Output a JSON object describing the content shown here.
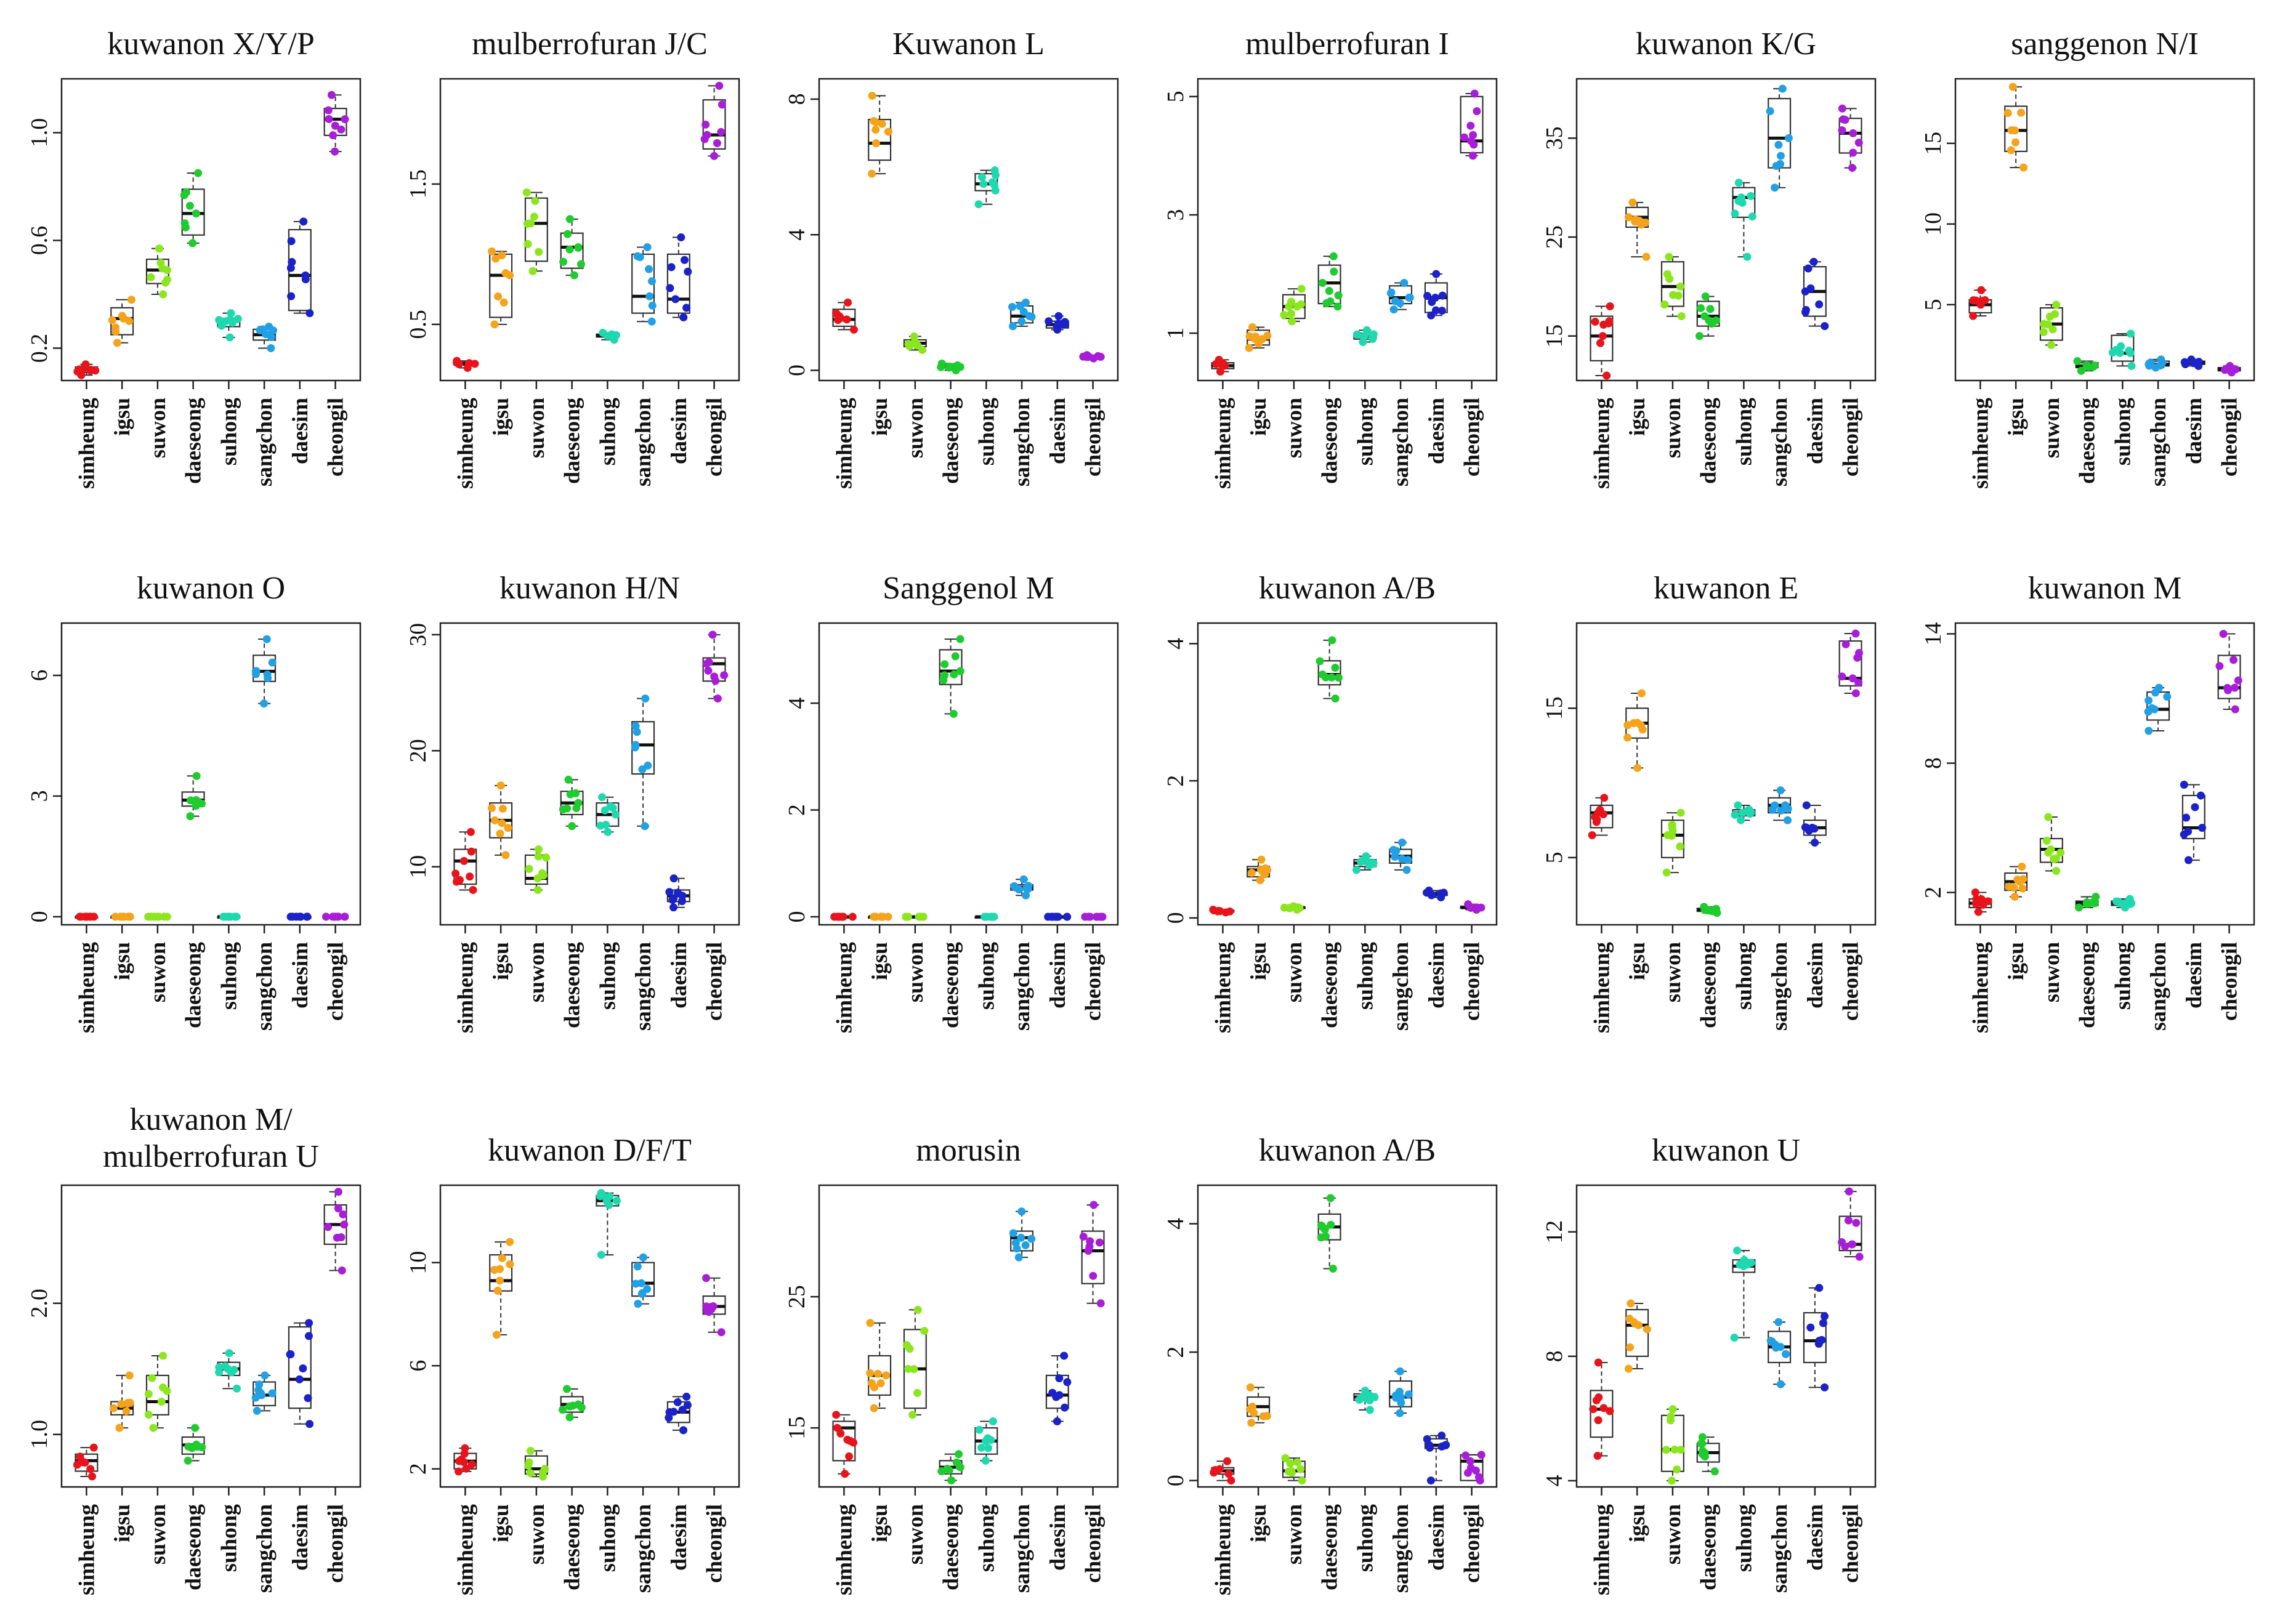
{
  "categories": [
    "simheung",
    "igsu",
    "suwon",
    "daeseong",
    "suhong",
    "sangchon",
    "daesim",
    "cheongil"
  ],
  "group_colors": [
    "#e8141c",
    "#f5a31a",
    "#8ce61e",
    "#1ecc2e",
    "#1ed9b0",
    "#21a0e6",
    "#1a22c8",
    "#a81ed8"
  ],
  "chart_data": [
    {
      "type": "box",
      "title": "kuwanon X/Y/P",
      "ylim": [
        0.08,
        1.2
      ],
      "ticks": [
        0.2,
        0.6,
        1.0
      ],
      "tick_labels": [
        "0.2",
        "0.6",
        "1.0"
      ],
      "medians": [
        0.12,
        0.31,
        0.49,
        0.7,
        0.3,
        0.25,
        0.47,
        1.05
      ],
      "q1": [
        0.11,
        0.25,
        0.44,
        0.62,
        0.28,
        0.23,
        0.34,
        0.99
      ],
      "q3": [
        0.13,
        0.35,
        0.53,
        0.79,
        0.31,
        0.27,
        0.64,
        1.09
      ],
      "mins": [
        0.1,
        0.22,
        0.4,
        0.59,
        0.24,
        0.2,
        0.33,
        0.93
      ],
      "maxs": [
        0.14,
        0.38,
        0.57,
        0.85,
        0.33,
        0.28,
        0.67,
        1.14
      ]
    },
    {
      "type": "box",
      "title": "mulberrofuran J/C",
      "ylim": [
        0.1,
        2.25
      ],
      "ticks": [
        0.5,
        1.5
      ],
      "tick_labels": [
        "0.5",
        "1.5"
      ],
      "medians": [
        0.22,
        0.85,
        1.22,
        1.05,
        0.42,
        0.7,
        0.68,
        1.85
      ],
      "q1": [
        0.21,
        0.55,
        0.95,
        0.9,
        0.41,
        0.58,
        0.58,
        1.75
      ],
      "q3": [
        0.23,
        1.0,
        1.4,
        1.15,
        0.43,
        1.0,
        1.0,
        2.1
      ],
      "mins": [
        0.19,
        0.5,
        0.88,
        0.85,
        0.39,
        0.52,
        0.55,
        1.7
      ],
      "maxs": [
        0.24,
        1.02,
        1.44,
        1.25,
        0.44,
        1.05,
        1.12,
        2.2
      ]
    },
    {
      "type": "box",
      "title": "Kuwanon L",
      "ylim": [
        -0.3,
        8.6
      ],
      "ticks": [
        0,
        4,
        8
      ],
      "tick_labels": [
        "0",
        "4",
        "8"
      ],
      "medians": [
        1.5,
        6.7,
        0.8,
        0.1,
        5.5,
        1.6,
        1.35,
        0.4
      ],
      "q1": [
        1.3,
        6.2,
        0.7,
        0.08,
        5.3,
        1.4,
        1.25,
        0.38
      ],
      "q3": [
        1.8,
        7.4,
        0.9,
        0.15,
        5.8,
        1.9,
        1.45,
        0.42
      ],
      "mins": [
        1.2,
        5.8,
        0.6,
        0.0,
        4.9,
        1.3,
        1.2,
        0.35
      ],
      "maxs": [
        2.0,
        8.1,
        1.0,
        0.2,
        5.9,
        2.0,
        1.6,
        0.45
      ]
    },
    {
      "type": "box",
      "title": "mulberrofuran I",
      "ylim": [
        0.2,
        5.3
      ],
      "ticks": [
        1,
        3,
        5
      ],
      "tick_labels": [
        "1",
        "3",
        "5"
      ],
      "medians": [
        0.45,
        0.9,
        1.45,
        1.85,
        0.95,
        1.6,
        1.6,
        4.25
      ],
      "q1": [
        0.4,
        0.8,
        1.25,
        1.5,
        0.9,
        1.5,
        1.35,
        4.05
      ],
      "q3": [
        0.5,
        1.05,
        1.65,
        2.15,
        1.0,
        1.8,
        1.85,
        5.0
      ],
      "mins": [
        0.35,
        0.75,
        1.2,
        1.45,
        0.85,
        1.4,
        1.3,
        4.0
      ],
      "maxs": [
        0.55,
        1.1,
        1.75,
        2.3,
        1.05,
        1.85,
        2.0,
        5.05
      ]
    },
    {
      "type": "box",
      "title": "kuwanon K/G",
      "ylim": [
        10.5,
        41
      ],
      "ticks": [
        15,
        25,
        35
      ],
      "tick_labels": [
        "15",
        "25",
        "35"
      ],
      "medians": [
        15,
        27,
        20,
        17,
        29,
        35,
        19.5,
        35.5
      ],
      "q1": [
        12.5,
        26,
        18,
        16,
        27,
        32,
        17,
        33.5
      ],
      "q3": [
        17,
        28,
        22.5,
        18.5,
        30,
        39,
        22,
        37
      ],
      "mins": [
        11,
        23,
        17,
        15,
        23,
        30,
        16,
        32
      ],
      "maxs": [
        18,
        28.5,
        23,
        19,
        30.5,
        40,
        22.5,
        38
      ]
    },
    {
      "type": "box",
      "title": "sanggenon N/I",
      "ylim": [
        0.3,
        19
      ],
      "ticks": [
        5,
        10,
        15
      ],
      "tick_labels": [
        "5",
        "10",
        "15"
      ],
      "medians": [
        5,
        15.8,
        3.8,
        1.2,
        2.0,
        1.3,
        1.4,
        1.0
      ],
      "q1": [
        4.5,
        14.5,
        2.8,
        1.1,
        1.5,
        1.2,
        1.3,
        0.9
      ],
      "q3": [
        5.3,
        17.3,
        4.8,
        1.4,
        3.1,
        1.5,
        1.5,
        1.1
      ],
      "mins": [
        4.3,
        13.5,
        2.5,
        0.9,
        1.2,
        1.1,
        1.2,
        0.8
      ],
      "maxs": [
        5.9,
        18.5,
        5.0,
        1.5,
        3.2,
        1.6,
        1.6,
        1.2
      ]
    },
    {
      "type": "box",
      "title": "kuwanon O",
      "ylim": [
        -0.2,
        7.3
      ],
      "ticks": [
        0,
        3,
        6
      ],
      "tick_labels": [
        "0",
        "3",
        "6"
      ],
      "medians": [
        0,
        0,
        0,
        2.9,
        0,
        6.1,
        0,
        0
      ],
      "q1": [
        0,
        0,
        0,
        2.75,
        0,
        5.85,
        0,
        0
      ],
      "q3": [
        0,
        0,
        0,
        3.1,
        0,
        6.5,
        0,
        0
      ],
      "mins": [
        0,
        0,
        0,
        2.5,
        0,
        5.3,
        0,
        0
      ],
      "maxs": [
        0,
        0,
        0,
        3.5,
        0,
        6.9,
        0,
        0
      ]
    },
    {
      "type": "box",
      "title": "kuwanon H/N",
      "ylim": [
        5,
        31
      ],
      "ticks": [
        10,
        20,
        30
      ],
      "tick_labels": [
        "10",
        "20",
        "30"
      ],
      "medians": [
        10.5,
        14,
        9,
        15.5,
        14.5,
        20.5,
        7.5,
        27.5
      ],
      "q1": [
        8.5,
        12.5,
        8.5,
        14.5,
        13.5,
        18,
        7,
        26
      ],
      "q3": [
        11.5,
        15.5,
        11,
        16.5,
        15.5,
        22.5,
        8,
        28
      ],
      "mins": [
        8,
        11,
        8,
        13.5,
        13,
        13.5,
        6.5,
        24.5
      ],
      "maxs": [
        13,
        17,
        11.5,
        17.5,
        16,
        24.5,
        9,
        30
      ]
    },
    {
      "type": "box",
      "title": "Sanggenol M",
      "ylim": [
        -0.15,
        5.5
      ],
      "ticks": [
        0,
        2,
        4
      ],
      "tick_labels": [
        "0",
        "2",
        "4"
      ],
      "medians": [
        0,
        0,
        0,
        4.6,
        0,
        0.55,
        0,
        0
      ],
      "q1": [
        0,
        0,
        0,
        4.35,
        0,
        0.5,
        0,
        0
      ],
      "q3": [
        0,
        0,
        0,
        5.0,
        0,
        0.6,
        0,
        0
      ],
      "mins": [
        0,
        0,
        0,
        3.8,
        0,
        0.4,
        0,
        0
      ],
      "maxs": [
        0,
        0,
        0,
        5.2,
        0,
        0.7,
        0,
        0
      ]
    },
    {
      "type": "box",
      "title": "kuwanon A/B",
      "ylim": [
        -0.1,
        4.3
      ],
      "ticks": [
        0,
        2,
        4
      ],
      "tick_labels": [
        "0",
        "2",
        "4"
      ],
      "medians": [
        0.1,
        0.7,
        0.15,
        3.55,
        0.8,
        0.9,
        0.35,
        0.15
      ],
      "q1": [
        0.09,
        0.6,
        0.14,
        3.4,
        0.75,
        0.8,
        0.33,
        0.14
      ],
      "q3": [
        0.11,
        0.75,
        0.16,
        3.75,
        0.85,
        1.0,
        0.37,
        0.17
      ],
      "mins": [
        0.08,
        0.55,
        0.12,
        3.2,
        0.7,
        0.7,
        0.3,
        0.12
      ],
      "maxs": [
        0.12,
        0.85,
        0.17,
        4.05,
        0.9,
        1.1,
        0.4,
        0.2
      ]
    },
    {
      "type": "box",
      "title": "kuwanon E",
      "ylim": [
        0.5,
        20.7
      ],
      "ticks": [
        5,
        15
      ],
      "tick_labels": [
        "5",
        "15"
      ],
      "medians": [
        8,
        14,
        6.5,
        1.5,
        8,
        8.5,
        7,
        17
      ],
      "q1": [
        7,
        13,
        5,
        1.4,
        7.8,
        8,
        6.5,
        16.5
      ],
      "q3": [
        8.5,
        15,
        7.5,
        1.6,
        8.2,
        9,
        7.5,
        19.5
      ],
      "mins": [
        6.5,
        11,
        4,
        1.3,
        7.5,
        7.5,
        6,
        16
      ],
      "maxs": [
        9,
        16,
        8,
        1.7,
        8.5,
        9.5,
        8.5,
        20
      ]
    },
    {
      "type": "box",
      "title": "kuwanon M",
      "ylim": [
        0.5,
        14.5
      ],
      "ticks": [
        2,
        8,
        14
      ],
      "tick_labels": [
        "2",
        "8",
        "14"
      ],
      "medians": [
        1.5,
        2.5,
        4,
        1.5,
        1.5,
        10.5,
        5,
        11.5
      ],
      "q1": [
        1.3,
        2.1,
        3.4,
        1.4,
        1.4,
        10,
        4.5,
        11
      ],
      "q3": [
        1.7,
        2.9,
        4.5,
        1.6,
        1.6,
        11.3,
        6.5,
        13
      ],
      "mins": [
        1.1,
        1.8,
        3,
        1.3,
        1.3,
        9.5,
        3.5,
        10.5
      ],
      "maxs": [
        2,
        3.2,
        5.5,
        1.8,
        1.7,
        11.5,
        7,
        14
      ]
    },
    {
      "type": "box",
      "title": "kuwanon M/ mulberrofuran U",
      "ylim": [
        0.6,
        2.9
      ],
      "ticks": [
        1.0,
        2.0
      ],
      "tick_labels": [
        "1.0",
        "2.0"
      ],
      "medians": [
        0.8,
        1.2,
        1.25,
        0.92,
        1.5,
        1.3,
        1.42,
        2.6
      ],
      "q1": [
        0.72,
        1.15,
        1.15,
        0.85,
        1.45,
        1.22,
        1.2,
        2.45
      ],
      "q3": [
        0.85,
        1.25,
        1.45,
        0.98,
        1.55,
        1.4,
        1.82,
        2.75
      ],
      "mins": [
        0.68,
        1.05,
        1.05,
        0.8,
        1.35,
        1.18,
        1.08,
        2.25
      ],
      "maxs": [
        0.9,
        1.45,
        1.6,
        1.05,
        1.62,
        1.45,
        1.85,
        2.85
      ]
    },
    {
      "type": "box",
      "title": "kuwanon D/F/T",
      "ylim": [
        1.3,
        13
      ],
      "ticks": [
        2,
        6,
        10
      ],
      "tick_labels": [
        "2",
        "6",
        "10"
      ],
      "medians": [
        2.3,
        9.3,
        2.0,
        4.5,
        12.4,
        9.2,
        4.2,
        8.3
      ],
      "q1": [
        2.0,
        8.9,
        1.8,
        4.2,
        12.2,
        8.7,
        3.8,
        8.0
      ],
      "q3": [
        2.6,
        10.3,
        2.5,
        4.8,
        12.6,
        10.0,
        4.6,
        8.7
      ],
      "mins": [
        1.9,
        7.2,
        1.7,
        4.0,
        10.3,
        8.4,
        3.5,
        7.3
      ],
      "maxs": [
        2.8,
        10.8,
        2.7,
        5.1,
        12.7,
        10.2,
        4.8,
        9.4
      ]
    },
    {
      "type": "box",
      "title": "morusin",
      "ylim": [
        10.5,
        33.5
      ],
      "ticks": [
        15,
        25
      ],
      "tick_labels": [
        "15",
        "25"
      ],
      "medians": [
        15,
        19,
        19.5,
        12,
        14,
        29.5,
        17.5,
        28.5
      ],
      "q1": [
        12.5,
        17.5,
        16.5,
        11.5,
        13,
        28.5,
        16.5,
        26
      ],
      "q3": [
        15.5,
        20.5,
        22.5,
        12.5,
        15,
        30,
        19,
        30
      ],
      "mins": [
        11.5,
        16.5,
        16,
        11,
        12.5,
        28,
        15.5,
        24.5
      ],
      "maxs": [
        16,
        23,
        24,
        13,
        15.5,
        31.5,
        20.5,
        32
      ]
    },
    {
      "type": "box",
      "title": "kuwanon A/B",
      "ylim": [
        -0.1,
        4.6
      ],
      "ticks": [
        0,
        2,
        4
      ],
      "tick_labels": [
        "0",
        "2",
        "4"
      ],
      "medians": [
        0.15,
        1.15,
        0.15,
        3.95,
        1.3,
        1.3,
        0.55,
        0.3
      ],
      "q1": [
        0.1,
        1.0,
        0.05,
        3.75,
        1.25,
        1.15,
        0.5,
        0.0
      ],
      "q3": [
        0.2,
        1.3,
        0.3,
        4.15,
        1.35,
        1.55,
        0.65,
        0.4
      ],
      "mins": [
        0.0,
        0.9,
        0.0,
        3.3,
        1.1,
        1.05,
        0.0,
        0.0
      ],
      "maxs": [
        0.3,
        1.45,
        0.35,
        4.4,
        1.4,
        1.7,
        0.7,
        0.4
      ]
    },
    {
      "type": "box",
      "title": "kuwanon U",
      "ylim": [
        3.8,
        13.5
      ],
      "ticks": [
        4,
        8,
        12
      ],
      "tick_labels": [
        "4",
        "8",
        "12"
      ],
      "medians": [
        6.3,
        9,
        5,
        4.9,
        10.9,
        8.3,
        8.5,
        11.6
      ],
      "q1": [
        5.4,
        8,
        4.3,
        4.6,
        10.7,
        7.8,
        7.8,
        11.4
      ],
      "q3": [
        6.9,
        9.5,
        6.1,
        5.2,
        11.1,
        8.8,
        9.4,
        12.5
      ],
      "mins": [
        4.8,
        7.6,
        4,
        4.3,
        8.6,
        7.1,
        7,
        11.2
      ],
      "maxs": [
        7.8,
        9.7,
        6.3,
        5.4,
        11.4,
        9.1,
        10.2,
        13.3
      ]
    }
  ]
}
